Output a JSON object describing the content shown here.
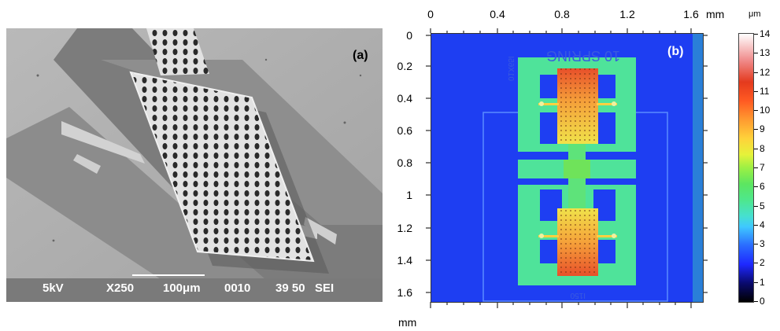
{
  "panel_a": {
    "label": "(a)",
    "voltage": "5kV",
    "magnification": "X250",
    "scale": "100μm",
    "image_number": "0010",
    "working_distance": "39 50",
    "detector": "SEI"
  },
  "panel_b": {
    "label": "(b)",
    "x_ticks": [
      "0",
      "0.4",
      "0.8",
      "1.2",
      "1.6"
    ],
    "x_unit": "mm",
    "y_ticks": [
      "0",
      "0.2",
      "0.4",
      "0.6",
      "0.8",
      "1",
      "1.2",
      "1.4",
      "1.6"
    ],
    "y_unit": "mm",
    "engraved_text_top": "10 SPRING",
    "engraved_text_side": "01X65I",
    "engraved_text_bottom": "I150"
  },
  "colorbar": {
    "unit": "μm",
    "ticks": [
      "0",
      "1",
      "2",
      "3",
      "4",
      "5",
      "6",
      "7",
      "8",
      "9",
      "10",
      "11",
      "12",
      "13",
      "14"
    ]
  }
}
